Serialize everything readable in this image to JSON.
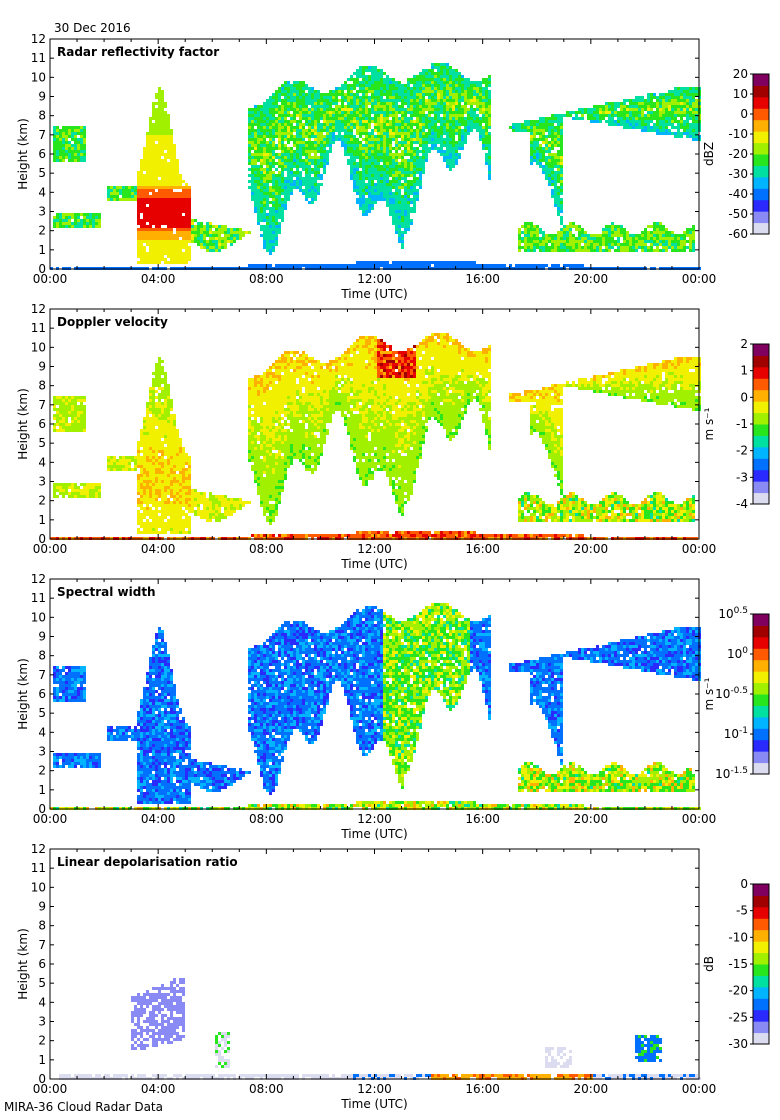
{
  "header": {
    "date": "30 Dec 2016"
  },
  "footer": {
    "caption": "MIRA-36 Cloud Radar Data"
  },
  "colors": {
    "frame": "#000000",
    "jet": [
      "#dcdcf0",
      "#8a8af5",
      "#2a2aff",
      "#0070ff",
      "#00b4ff",
      "#00e0a0",
      "#28e61e",
      "#a0f000",
      "#f0f000",
      "#ffb000",
      "#ff5a00",
      "#e60000",
      "#a00000",
      "#800060"
    ]
  },
  "chart_data": [
    {
      "type": "heatmap",
      "name": "reflectivity",
      "title": "Radar reflectivity factor",
      "xlabel": "Time (UTC)",
      "ylabel": "Height (km)",
      "xticks": [
        "00:00",
        "04:00",
        "08:00",
        "12:00",
        "16:00",
        "20:00",
        "00:00"
      ],
      "xlim_hours": [
        0,
        24
      ],
      "ylim_km": [
        0,
        12
      ],
      "yticks": [
        "0",
        "1",
        "2",
        "3",
        "4",
        "5",
        "6",
        "7",
        "8",
        "9",
        "10",
        "11",
        "12"
      ],
      "colorbar": {
        "unit": "dBZ",
        "min": -60,
        "max": 20,
        "ticks": [
          {
            "v": 20,
            "t": "20"
          },
          {
            "v": 10,
            "t": "10"
          },
          {
            "v": 0,
            "t": "0"
          },
          {
            "v": -10,
            "t": "-10"
          },
          {
            "v": -20,
            "t": "-20"
          },
          {
            "v": -30,
            "t": "-30"
          },
          {
            "v": -40,
            "t": "-40"
          },
          {
            "v": -50,
            "t": "-50"
          },
          {
            "v": -60,
            "t": "-60"
          }
        ]
      }
    },
    {
      "type": "heatmap",
      "name": "velocity",
      "title": "Doppler velocity",
      "xlabel": "Time (UTC)",
      "ylabel": "Height (km)",
      "xticks": [
        "00:00",
        "04:00",
        "08:00",
        "12:00",
        "16:00",
        "20:00",
        "00:00"
      ],
      "xlim_hours": [
        0,
        24
      ],
      "ylim_km": [
        0,
        12
      ],
      "yticks": [
        "0",
        "1",
        "2",
        "3",
        "4",
        "5",
        "6",
        "7",
        "8",
        "9",
        "10",
        "11",
        "12"
      ],
      "colorbar": {
        "unit": "m s⁻¹",
        "min": -4,
        "max": 2,
        "ticks": [
          {
            "v": 2,
            "t": "2"
          },
          {
            "v": 1,
            "t": "1"
          },
          {
            "v": 0,
            "t": "0"
          },
          {
            "v": -1,
            "t": "-1"
          },
          {
            "v": -2,
            "t": "-2"
          },
          {
            "v": -3,
            "t": "-3"
          },
          {
            "v": -4,
            "t": "-4"
          }
        ]
      }
    },
    {
      "type": "heatmap",
      "name": "width",
      "title": "Spectral width",
      "xlabel": "Time (UTC)",
      "ylabel": "Height (km)",
      "xticks": [
        "00:00",
        "04:00",
        "08:00",
        "12:00",
        "16:00",
        "20:00",
        "00:00"
      ],
      "xlim_hours": [
        0,
        24
      ],
      "ylim_km": [
        0,
        12
      ],
      "yticks": [
        "0",
        "1",
        "2",
        "3",
        "4",
        "5",
        "6",
        "7",
        "8",
        "9",
        "10",
        "11",
        "12"
      ],
      "colorbar": {
        "unit": "m s⁻¹",
        "min": -1.5,
        "max": 0.5,
        "ticks": [
          {
            "v": 0.5,
            "t": "10^0.5"
          },
          {
            "v": 0,
            "t": "10^0"
          },
          {
            "v": -0.5,
            "t": "10^-0.5"
          },
          {
            "v": -1,
            "t": "10^-1"
          },
          {
            "v": -1.5,
            "t": "10^-1.5"
          }
        ]
      }
    },
    {
      "type": "heatmap",
      "name": "ldr",
      "title": "Linear depolarisation ratio",
      "xlabel": "Time (UTC)",
      "ylabel": "Height (km)",
      "xticks": [
        "00:00",
        "04:00",
        "08:00",
        "12:00",
        "16:00",
        "20:00",
        "00:00"
      ],
      "xlim_hours": [
        0,
        24
      ],
      "ylim_km": [
        0,
        12
      ],
      "yticks": [
        "0",
        "1",
        "2",
        "3",
        "4",
        "5",
        "6",
        "7",
        "8",
        "9",
        "10",
        "11",
        "12"
      ],
      "colorbar": {
        "unit": "dB",
        "min": -30,
        "max": 0,
        "ticks": [
          {
            "v": 0,
            "t": "0"
          },
          {
            "v": -5,
            "t": "-5"
          },
          {
            "v": -10,
            "t": "-10"
          },
          {
            "v": -15,
            "t": "-15"
          },
          {
            "v": -20,
            "t": "-20"
          },
          {
            "v": -25,
            "t": "-25"
          },
          {
            "v": -30,
            "t": "-30"
          }
        ]
      }
    }
  ]
}
